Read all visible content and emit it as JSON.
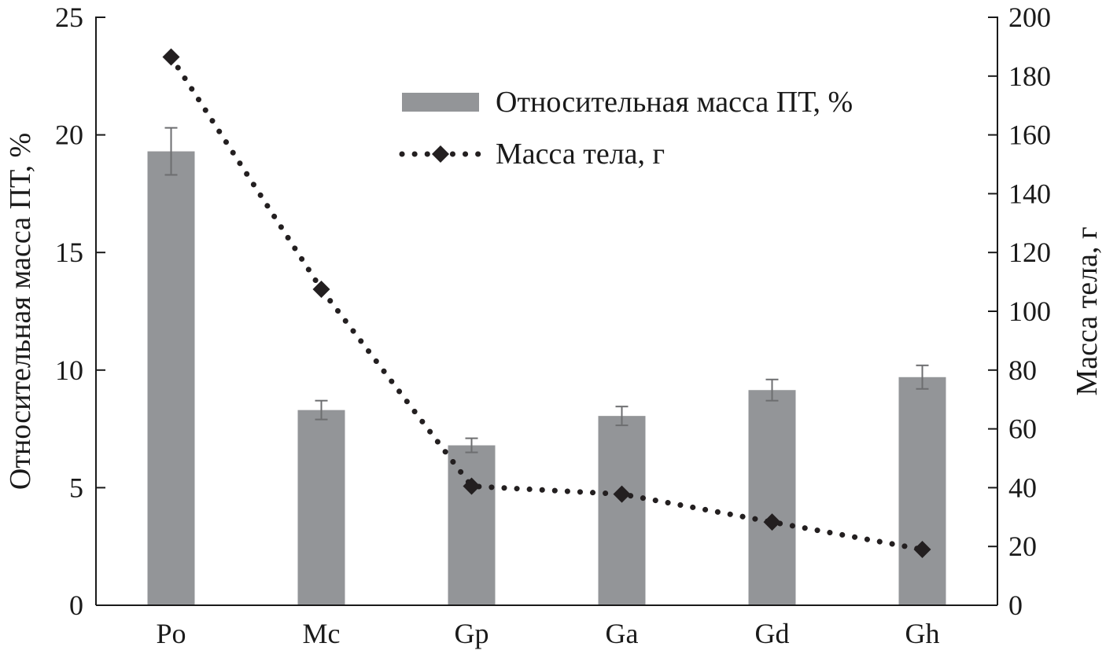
{
  "chart_data": {
    "type": "bar",
    "categories": [
      "Po",
      "Mc",
      "Gp",
      "Ga",
      "Gd",
      "Gh"
    ],
    "series": [
      {
        "name": "Относительная масса ПТ, %",
        "kind": "bar",
        "axis": "left",
        "values": [
          19.3,
          8.3,
          6.8,
          8.05,
          9.15,
          9.7
        ],
        "errors": [
          1.0,
          0.4,
          0.3,
          0.4,
          0.45,
          0.5
        ],
        "color": "#939598"
      },
      {
        "name": "Масса тела, г",
        "kind": "line",
        "line_style": "dotted",
        "marker": "diamond",
        "axis": "right",
        "values": [
          186.5,
          107.5,
          40.5,
          37.8,
          28.3,
          19
        ],
        "color": "#231f20"
      }
    ],
    "y_left": {
      "label": "Относительная масса ПТ, %",
      "lim": [
        0,
        25
      ],
      "ticks": [
        0,
        5,
        10,
        15,
        20,
        25
      ]
    },
    "y_right": {
      "label": "Масса тела, г",
      "lim": [
        0,
        200
      ],
      "ticks": [
        0,
        20,
        40,
        60,
        80,
        100,
        120,
        140,
        160,
        180,
        200
      ]
    },
    "legend_position": "top-right",
    "grid": false
  }
}
